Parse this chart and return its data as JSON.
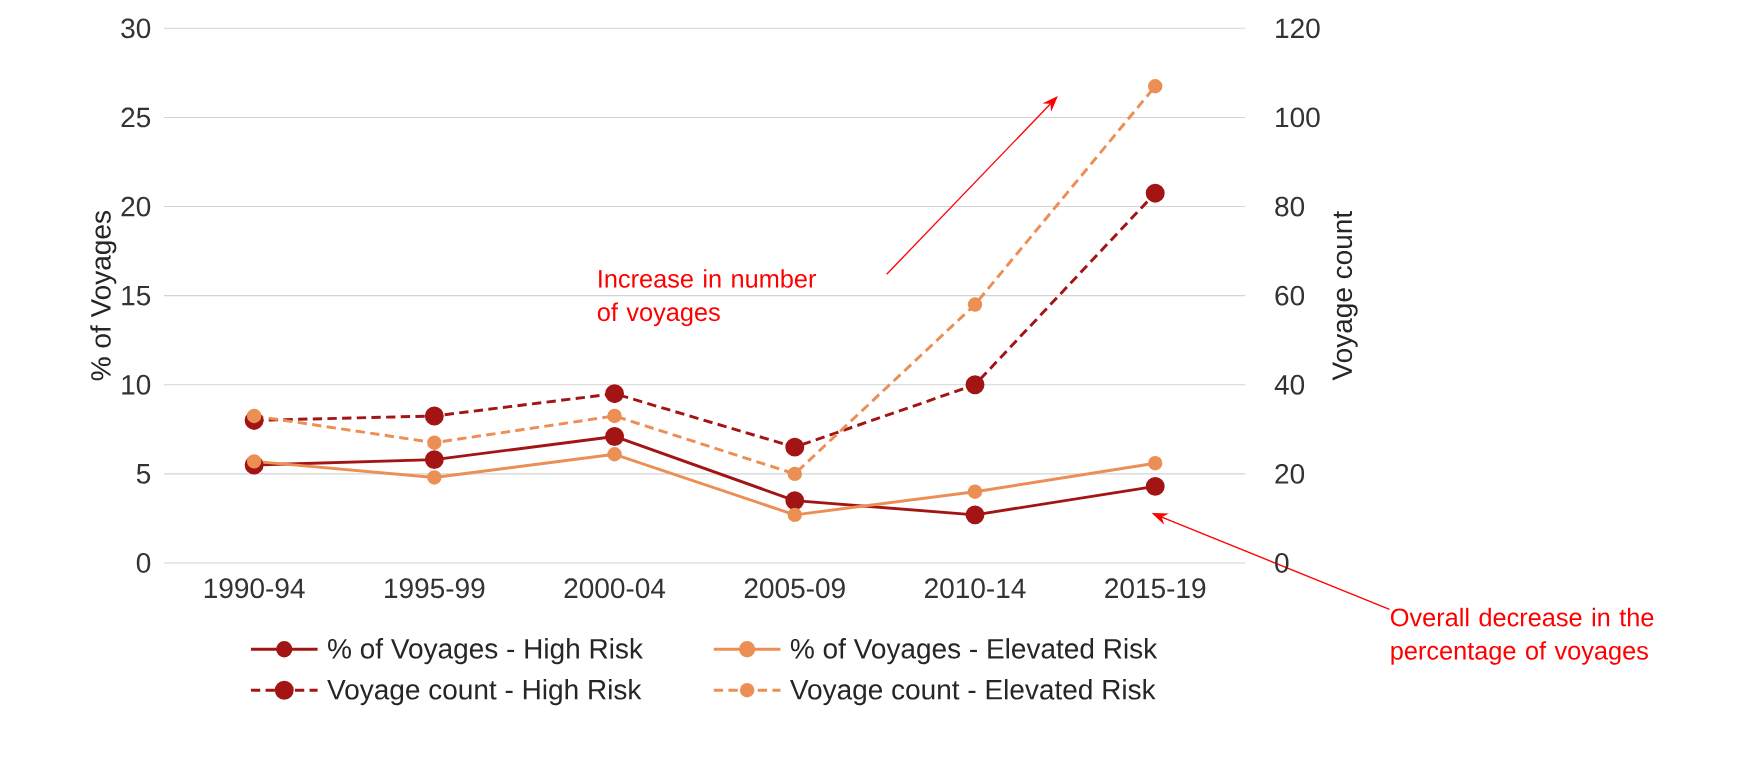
{
  "chart_data": {
    "type": "line",
    "categories": [
      "1990-94",
      "1995-99",
      "2000-04",
      "2005-09",
      "2010-14",
      "2015-19"
    ],
    "ylabel": "% of Voyages",
    "y2label": "Voyage count",
    "ylim": [
      0,
      30
    ],
    "yticks": [
      0,
      5,
      10,
      15,
      20,
      25,
      30
    ],
    "y2lim": [
      0,
      120
    ],
    "y2ticks": [
      0,
      20,
      40,
      60,
      80,
      100,
      120
    ],
    "grid": "y",
    "legend": "bottom",
    "marker": "circle",
    "series": [
      {
        "name": "% of Voyages - High Risk",
        "color": "#a31515",
        "line_style": "solid",
        "values": [
          5.5,
          5.8,
          7.1,
          3.5,
          2.7,
          4.3
        ]
      },
      {
        "name": "% of Voyages - Elevated Risk",
        "color": "#eb8f55",
        "line_style": "solid",
        "values": [
          5.7,
          4.8,
          6.1,
          2.7,
          4.0,
          5.6
        ]
      },
      {
        "name": "Voyage count - High Risk",
        "color": "#a31515",
        "line_style": "dashed",
        "axis": "y2",
        "values": [
          32,
          33,
          38,
          26,
          40,
          83
        ]
      },
      {
        "name": "Voyage count - Elevated Risk",
        "color": "#eb8f55",
        "line_style": "dashed",
        "axis": "y2",
        "values": [
          33,
          27,
          33,
          20,
          58,
          107
        ]
      }
    ],
    "annotations": [
      "Increase  in number of voyages",
      "Overall decrease in the percentage of voyages"
    ]
  }
}
